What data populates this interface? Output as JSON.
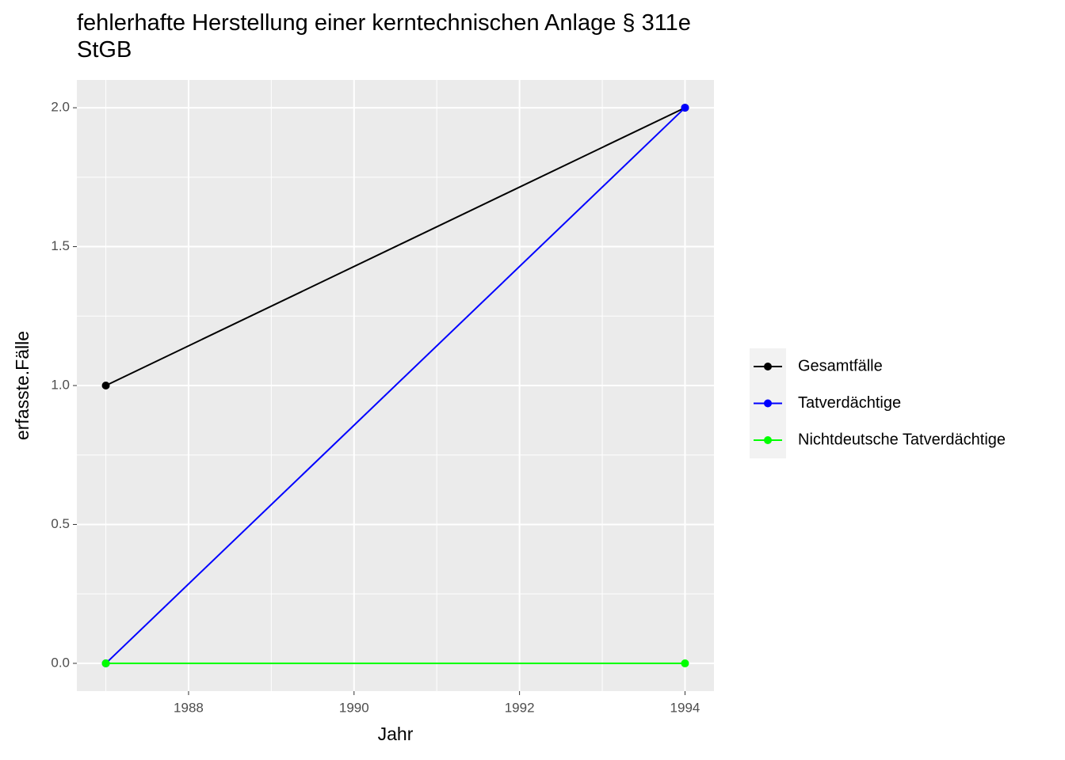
{
  "chart_data": {
    "type": "line",
    "title": "fehlerhafte Herstellung einer kerntechnischen Anlage § 311e\nStGB",
    "x_label": "Jahr",
    "y_label": "erfasste.Fälle",
    "x": [
      1987,
      1994
    ],
    "series": [
      {
        "name": "Gesamtfälle",
        "color": "#000000",
        "values": [
          1,
          2
        ]
      },
      {
        "name": "Tatverdächtige",
        "color": "#0000ff",
        "values": [
          0,
          2
        ]
      },
      {
        "name": "Nichtdeutsche Tatverdächtige",
        "color": "#00ff00",
        "values": [
          0,
          0
        ]
      }
    ],
    "xlim": [
      1986.65,
      1994.35
    ],
    "xticks": [
      1988,
      1990,
      1992,
      1994
    ],
    "ylim": [
      -0.1,
      2.1
    ],
    "yticks": [
      {
        "value": 0,
        "label": "0.0"
      },
      0.5,
      {
        "value": 1,
        "label": "1.0"
      },
      1.5,
      {
        "value": 2,
        "label": "2.0"
      }
    ],
    "grid": true,
    "legend": "right"
  }
}
